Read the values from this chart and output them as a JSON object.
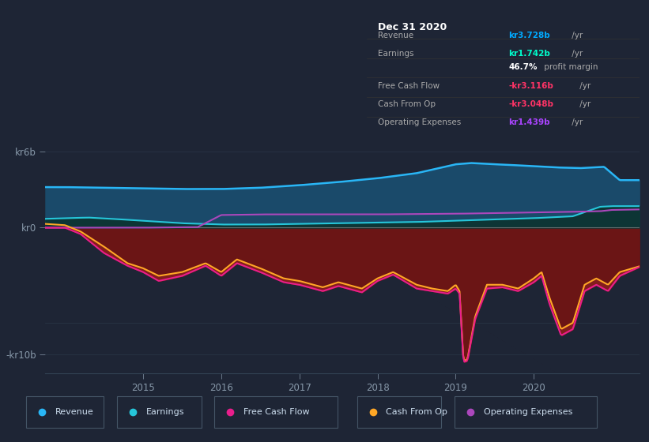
{
  "bg_color": "#1e2535",
  "plot_bg_color": "#1e2535",
  "title_text": "Dec 31 2020",
  "tooltip": {
    "Revenue": {
      "value": "kr3.728b",
      "unit": " /yr",
      "color": "#00aaff"
    },
    "Earnings": {
      "value": "kr1.742b",
      "unit": " /yr",
      "color": "#00ffcc"
    },
    "profit_margin": "46.7% profit margin",
    "Free Cash Flow": {
      "value": "-kr3.116b",
      "unit": " /yr",
      "color": "#ff3366"
    },
    "Cash From Op": {
      "value": "-kr3.048b",
      "unit": " /yr",
      "color": "#ff3366"
    },
    "Operating Expenses": {
      "value": "kr1.439b",
      "unit": " /yr",
      "color": "#aa44ff"
    }
  },
  "ylim": [
    -11.5,
    7.5
  ],
  "year_start": 2013.75,
  "year_end": 2021.35,
  "xtick_years": [
    2015,
    2016,
    2017,
    2018,
    2019,
    2020
  ],
  "legend": [
    {
      "label": "Revenue",
      "color": "#29b6f6"
    },
    {
      "label": "Earnings",
      "color": "#26c6da"
    },
    {
      "label": "Free Cash Flow",
      "color": "#e91e8c"
    },
    {
      "label": "Cash From Op",
      "color": "#ffa726"
    },
    {
      "label": "Operating Expenses",
      "color": "#ab47bc"
    }
  ],
  "colors": {
    "revenue_line": "#29b6f6",
    "revenue_fill": "#1a4a6a",
    "earnings_line": "#26c6da",
    "earnings_fill": "#0d3535",
    "fcf_line": "#e91e8c",
    "cashop_line": "#ffa726",
    "opex_line": "#ab47bc",
    "negative_fill": "#6b1515",
    "zero_line": "#888888"
  }
}
